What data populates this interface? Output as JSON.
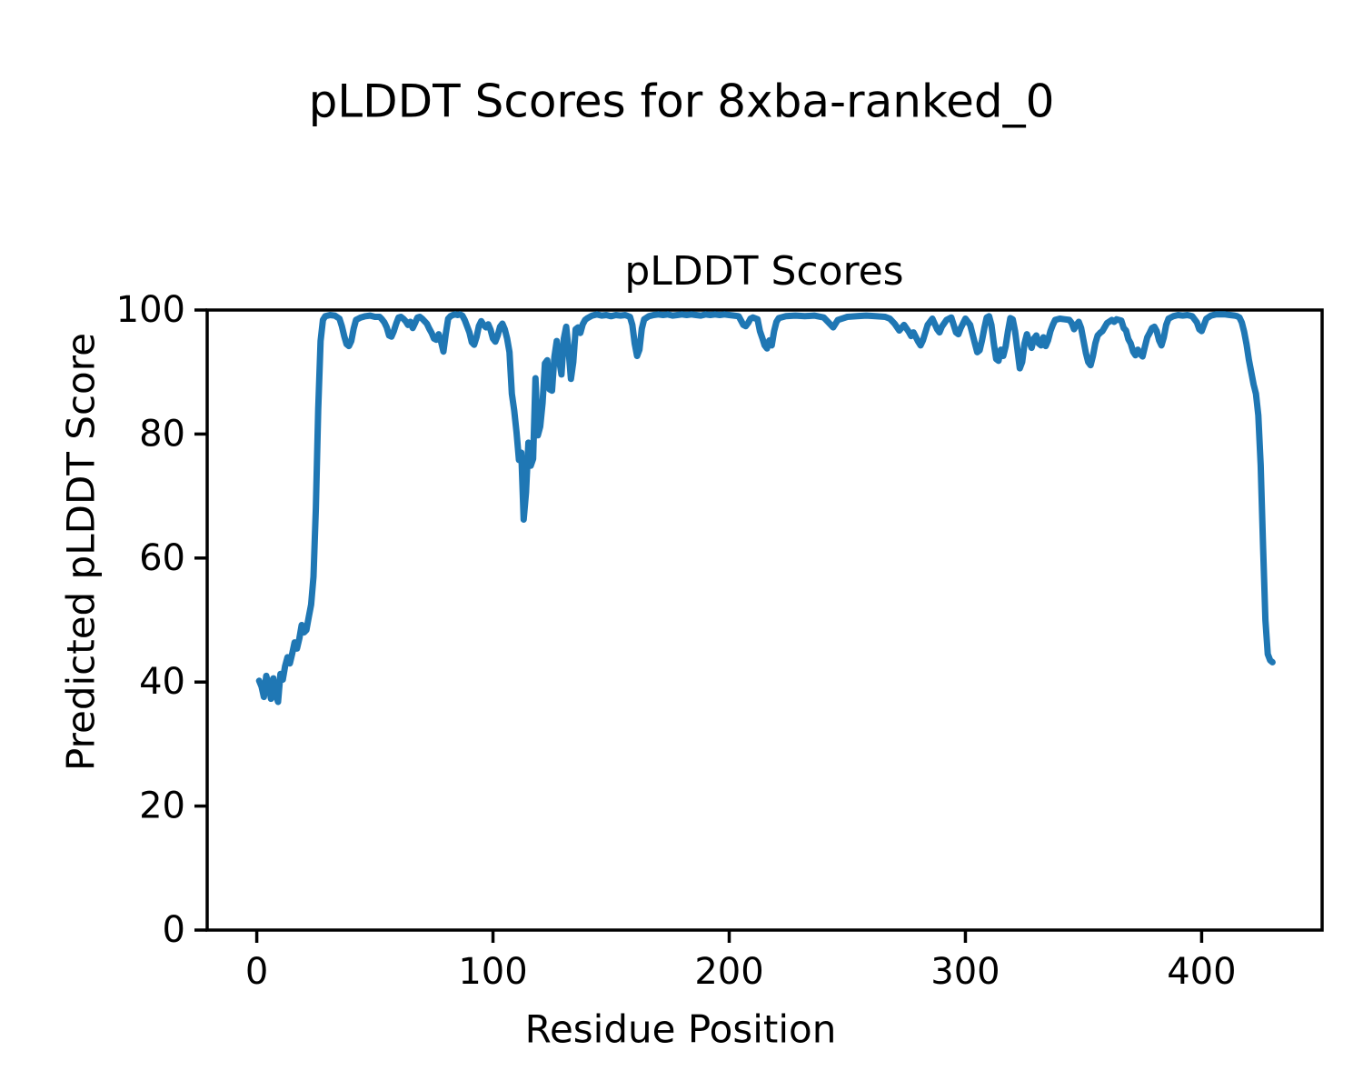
{
  "figure": {
    "suptitle": "pLDDT Scores for 8xba-ranked_0"
  },
  "chart_data": {
    "type": "line",
    "suptitle": "pLDDT Scores for 8xba-ranked_0",
    "title": "pLDDT Scores",
    "xlabel": "Residue Position",
    "ylabel": "Predicted pLDDT Score",
    "xlim": [
      -21,
      451
    ],
    "ylim": [
      0,
      100
    ],
    "xticks": [
      0,
      100,
      200,
      300,
      400
    ],
    "yticks": [
      0,
      20,
      40,
      60,
      80,
      100
    ],
    "grid": false,
    "legend": "none",
    "line_color": "#1f77b4",
    "axis_color": "#000000",
    "series": [
      {
        "name": "pLDDT",
        "points": [
          [
            1,
            40.2
          ],
          [
            2,
            39.3
          ],
          [
            3,
            37.6
          ],
          [
            4,
            41.0
          ],
          [
            5,
            39.6
          ],
          [
            6,
            37.3
          ],
          [
            7,
            40.6
          ],
          [
            8,
            38.0
          ],
          [
            9,
            36.8
          ],
          [
            10,
            41.3
          ],
          [
            11,
            40.4
          ],
          [
            12,
            42.6
          ],
          [
            13,
            44.0
          ],
          [
            14,
            43.0
          ],
          [
            15,
            44.6
          ],
          [
            16,
            46.4
          ],
          [
            17,
            45.4
          ],
          [
            18,
            47.0
          ],
          [
            19,
            49.2
          ],
          [
            20,
            48.0
          ],
          [
            21,
            48.4
          ],
          [
            22,
            50.5
          ],
          [
            23,
            52.5
          ],
          [
            24,
            57.0
          ],
          [
            25,
            68.0
          ],
          [
            26,
            84.0
          ],
          [
            27,
            95.0
          ],
          [
            28,
            98.4
          ],
          [
            29,
            99.0
          ],
          [
            31,
            99.2
          ],
          [
            33,
            99.1
          ],
          [
            35,
            98.6
          ],
          [
            36,
            97.4
          ],
          [
            37,
            95.8
          ],
          [
            38,
            94.5
          ],
          [
            39,
            94.2
          ],
          [
            40,
            95.0
          ],
          [
            41,
            97.0
          ],
          [
            42,
            98.4
          ],
          [
            44,
            98.8
          ],
          [
            46,
            99.0
          ],
          [
            48,
            99.1
          ],
          [
            50,
            98.9
          ],
          [
            52,
            98.9
          ],
          [
            53,
            98.5
          ],
          [
            54,
            98.0
          ],
          [
            55,
            97.2
          ],
          [
            56,
            95.9
          ],
          [
            57,
            95.7
          ],
          [
            58,
            96.6
          ],
          [
            59,
            97.8
          ],
          [
            60,
            98.8
          ],
          [
            61,
            98.9
          ],
          [
            62,
            98.6
          ],
          [
            63,
            98.2
          ],
          [
            64,
            97.6
          ],
          [
            65,
            98.1
          ],
          [
            66,
            97.1
          ],
          [
            67,
            97.9
          ],
          [
            68,
            98.8
          ],
          [
            69,
            98.9
          ],
          [
            70,
            98.6
          ],
          [
            71,
            98.2
          ],
          [
            72,
            97.8
          ],
          [
            73,
            97.0
          ],
          [
            74,
            96.3
          ],
          [
            75,
            95.4
          ],
          [
            76,
            95.2
          ],
          [
            77,
            96.1
          ],
          [
            78,
            94.9
          ],
          [
            79,
            93.3
          ],
          [
            80,
            96.2
          ],
          [
            81,
            98.6
          ],
          [
            82,
            99.0
          ],
          [
            83,
            99.2
          ],
          [
            84,
            99.3
          ],
          [
            85,
            99.2
          ],
          [
            86,
            99.3
          ],
          [
            87,
            99.1
          ],
          [
            88,
            98.4
          ],
          [
            89,
            97.4
          ],
          [
            90,
            96.4
          ],
          [
            91,
            94.8
          ],
          [
            92,
            94.4
          ],
          [
            93,
            95.6
          ],
          [
            94,
            97.4
          ],
          [
            95,
            98.2
          ],
          [
            96,
            97.6
          ],
          [
            97,
            97.2
          ],
          [
            98,
            97.7
          ],
          [
            99,
            96.8
          ],
          [
            100,
            95.4
          ],
          [
            101,
            94.9
          ],
          [
            102,
            95.9
          ],
          [
            103,
            97.3
          ],
          [
            104,
            97.8
          ],
          [
            105,
            96.9
          ],
          [
            106,
            95.4
          ],
          [
            107,
            93.2
          ],
          [
            108,
            86.5
          ],
          [
            109,
            83.8
          ],
          [
            110,
            80.2
          ],
          [
            111,
            75.8
          ],
          [
            112,
            77.0
          ],
          [
            113,
            66.2
          ],
          [
            114,
            70.6
          ],
          [
            115,
            78.6
          ],
          [
            116,
            74.9
          ],
          [
            117,
            76.0
          ],
          [
            118,
            89.0
          ],
          [
            119,
            79.8
          ],
          [
            120,
            81.2
          ],
          [
            121,
            85.0
          ],
          [
            122,
            91.4
          ],
          [
            123,
            91.9
          ],
          [
            124,
            87.2
          ],
          [
            125,
            87.0
          ],
          [
            126,
            92.4
          ],
          [
            127,
            95.0
          ],
          [
            128,
            92.0
          ],
          [
            129,
            89.6
          ],
          [
            130,
            95.4
          ],
          [
            131,
            97.3
          ],
          [
            132,
            93.6
          ],
          [
            133,
            88.9
          ],
          [
            134,
            91.6
          ],
          [
            135,
            96.9
          ],
          [
            136,
            97.2
          ],
          [
            137,
            96.3
          ],
          [
            138,
            97.7
          ],
          [
            139,
            98.4
          ],
          [
            140,
            98.7
          ],
          [
            142,
            99.1
          ],
          [
            144,
            99.3
          ],
          [
            146,
            99.1
          ],
          [
            148,
            99.2
          ],
          [
            150,
            99.0
          ],
          [
            152,
            99.2
          ],
          [
            154,
            99.1
          ],
          [
            156,
            99.2
          ],
          [
            158,
            98.9
          ],
          [
            159,
            97.6
          ],
          [
            160,
            94.6
          ],
          [
            161,
            92.6
          ],
          [
            162,
            93.6
          ],
          [
            163,
            97.0
          ],
          [
            164,
            98.5
          ],
          [
            166,
            99.0
          ],
          [
            168,
            99.2
          ],
          [
            170,
            99.3
          ],
          [
            172,
            99.2
          ],
          [
            174,
            99.3
          ],
          [
            176,
            99.1
          ],
          [
            178,
            99.2
          ],
          [
            180,
            99.3
          ],
          [
            182,
            99.2
          ],
          [
            184,
            99.3
          ],
          [
            186,
            99.2
          ],
          [
            188,
            99.1
          ],
          [
            190,
            99.3
          ],
          [
            192,
            99.2
          ],
          [
            194,
            99.3
          ],
          [
            196,
            99.2
          ],
          [
            198,
            99.3
          ],
          [
            200,
            99.2
          ],
          [
            202,
            99.1
          ],
          [
            204,
            99.0
          ],
          [
            205,
            98.3
          ],
          [
            206,
            97.6
          ],
          [
            207,
            97.4
          ],
          [
            208,
            97.9
          ],
          [
            209,
            98.6
          ],
          [
            210,
            98.8
          ],
          [
            212,
            98.5
          ],
          [
            213,
            96.6
          ],
          [
            214,
            95.5
          ],
          [
            215,
            94.3
          ],
          [
            216,
            93.8
          ],
          [
            217,
            95.1
          ],
          [
            218,
            94.3
          ],
          [
            219,
            96.6
          ],
          [
            220,
            98.1
          ],
          [
            221,
            98.7
          ],
          [
            224,
            99.0
          ],
          [
            228,
            99.1
          ],
          [
            232,
            99.0
          ],
          [
            236,
            99.1
          ],
          [
            240,
            98.8
          ],
          [
            242,
            98.0
          ],
          [
            244,
            97.2
          ],
          [
            246,
            98.4
          ],
          [
            250,
            98.9
          ],
          [
            254,
            99.0
          ],
          [
            258,
            99.1
          ],
          [
            262,
            99.0
          ],
          [
            266,
            98.9
          ],
          [
            268,
            98.6
          ],
          [
            270,
            97.8
          ],
          [
            272,
            96.7
          ],
          [
            274,
            97.6
          ],
          [
            276,
            96.5
          ],
          [
            277,
            95.8
          ],
          [
            278,
            96.4
          ],
          [
            280,
            94.9
          ],
          [
            281,
            94.3
          ],
          [
            282,
            95.1
          ],
          [
            284,
            97.6
          ],
          [
            286,
            98.6
          ],
          [
            288,
            96.9
          ],
          [
            289,
            96.4
          ],
          [
            290,
            97.3
          ],
          [
            292,
            98.4
          ],
          [
            294,
            98.8
          ],
          [
            296,
            96.4
          ],
          [
            297,
            96.1
          ],
          [
            298,
            97.1
          ],
          [
            300,
            98.6
          ],
          [
            302,
            97.6
          ],
          [
            304,
            94.6
          ],
          [
            305,
            93.2
          ],
          [
            306,
            93.5
          ],
          [
            307,
            95.1
          ],
          [
            308,
            97.1
          ],
          [
            309,
            98.8
          ],
          [
            310,
            99.0
          ],
          [
            311,
            97.6
          ],
          [
            312,
            94.6
          ],
          [
            313,
            92.1
          ],
          [
            314,
            91.8
          ],
          [
            315,
            93.6
          ],
          [
            316,
            92.6
          ],
          [
            317,
            94.1
          ],
          [
            318,
            96.6
          ],
          [
            319,
            98.7
          ],
          [
            320,
            98.5
          ],
          [
            321,
            96.6
          ],
          [
            322,
            93.6
          ],
          [
            323,
            90.6
          ],
          [
            324,
            91.6
          ],
          [
            325,
            94.6
          ],
          [
            326,
            96.1
          ],
          [
            327,
            94.9
          ],
          [
            328,
            93.9
          ],
          [
            329,
            95.4
          ],
          [
            330,
            95.9
          ],
          [
            331,
            94.6
          ],
          [
            332,
            94.3
          ],
          [
            333,
            95.6
          ],
          [
            334,
            94.2
          ],
          [
            335,
            95.1
          ],
          [
            336,
            96.6
          ],
          [
            337,
            97.6
          ],
          [
            338,
            98.4
          ],
          [
            340,
            98.6
          ],
          [
            342,
            98.5
          ],
          [
            344,
            98.4
          ],
          [
            345,
            97.9
          ],
          [
            346,
            96.9
          ],
          [
            347,
            97.6
          ],
          [
            348,
            98.1
          ],
          [
            349,
            97.1
          ],
          [
            350,
            95.1
          ],
          [
            351,
            93.1
          ],
          [
            352,
            91.6
          ],
          [
            353,
            91.1
          ],
          [
            354,
            92.6
          ],
          [
            355,
            94.6
          ],
          [
            356,
            95.9
          ],
          [
            357,
            96.3
          ],
          [
            358,
            96.6
          ],
          [
            360,
            97.9
          ],
          [
            362,
            98.4
          ],
          [
            363,
            98.1
          ],
          [
            364,
            98.5
          ],
          [
            366,
            98.3
          ],
          [
            367,
            97.1
          ],
          [
            368,
            96.7
          ],
          [
            369,
            95.3
          ],
          [
            370,
            94.6
          ],
          [
            371,
            93.3
          ],
          [
            372,
            92.7
          ],
          [
            373,
            93.6
          ],
          [
            374,
            92.9
          ],
          [
            375,
            92.5
          ],
          [
            376,
            94.1
          ],
          [
            377,
            95.6
          ],
          [
            378,
            96.3
          ],
          [
            379,
            97.1
          ],
          [
            380,
            97.3
          ],
          [
            381,
            96.6
          ],
          [
            382,
            95.1
          ],
          [
            383,
            94.3
          ],
          [
            384,
            95.6
          ],
          [
            385,
            97.6
          ],
          [
            386,
            98.6
          ],
          [
            388,
            99.0
          ],
          [
            390,
            99.2
          ],
          [
            392,
            99.1
          ],
          [
            394,
            99.2
          ],
          [
            396,
            99.0
          ],
          [
            398,
            98.0
          ],
          [
            399,
            96.9
          ],
          [
            400,
            96.6
          ],
          [
            401,
            97.6
          ],
          [
            402,
            98.6
          ],
          [
            404,
            99.1
          ],
          [
            406,
            99.3
          ],
          [
            408,
            99.3
          ],
          [
            410,
            99.3
          ],
          [
            412,
            99.2
          ],
          [
            414,
            99.1
          ],
          [
            415,
            99.0
          ],
          [
            416,
            98.8
          ],
          [
            417,
            98.0
          ],
          [
            418,
            96.5
          ],
          [
            419,
            94.5
          ],
          [
            420,
            92.0
          ],
          [
            421,
            90.0
          ],
          [
            422,
            88.0
          ],
          [
            423,
            86.5
          ],
          [
            424,
            83.0
          ],
          [
            425,
            75.0
          ],
          [
            426,
            62.0
          ],
          [
            427,
            50.0
          ],
          [
            428,
            44.5
          ],
          [
            429,
            43.5
          ],
          [
            430,
            43.2
          ]
        ]
      }
    ]
  }
}
